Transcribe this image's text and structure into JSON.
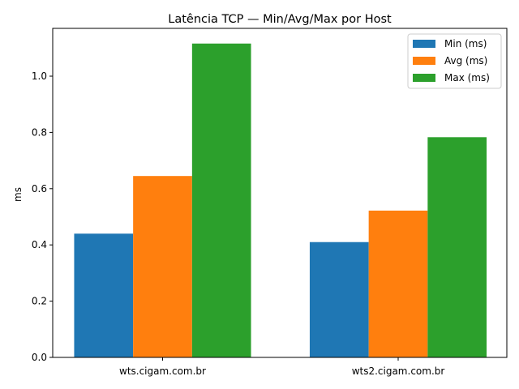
{
  "chart_data": {
    "type": "bar",
    "title": "Latência TCP — Min/Avg/Max por Host",
    "xlabel": "",
    "ylabel": "ms",
    "categories": [
      "wts.cigam.com.br",
      "wts2.cigam.com.br"
    ],
    "series": [
      {
        "name": "Min (ms)",
        "values": [
          0.44,
          0.41
        ],
        "color": "#1f77b4"
      },
      {
        "name": "Avg (ms)",
        "values": [
          0.645,
          0.522
        ],
        "color": "#ff7f0e"
      },
      {
        "name": "Max (ms)",
        "values": [
          1.116,
          0.783
        ],
        "color": "#2ca02c"
      }
    ],
    "ylim": [
      0,
      1.17
    ],
    "yticks": [
      "0.0",
      "0.2",
      "0.4",
      "0.6",
      "0.8",
      "1.0"
    ],
    "grid": false,
    "legend_position": "top-right"
  }
}
